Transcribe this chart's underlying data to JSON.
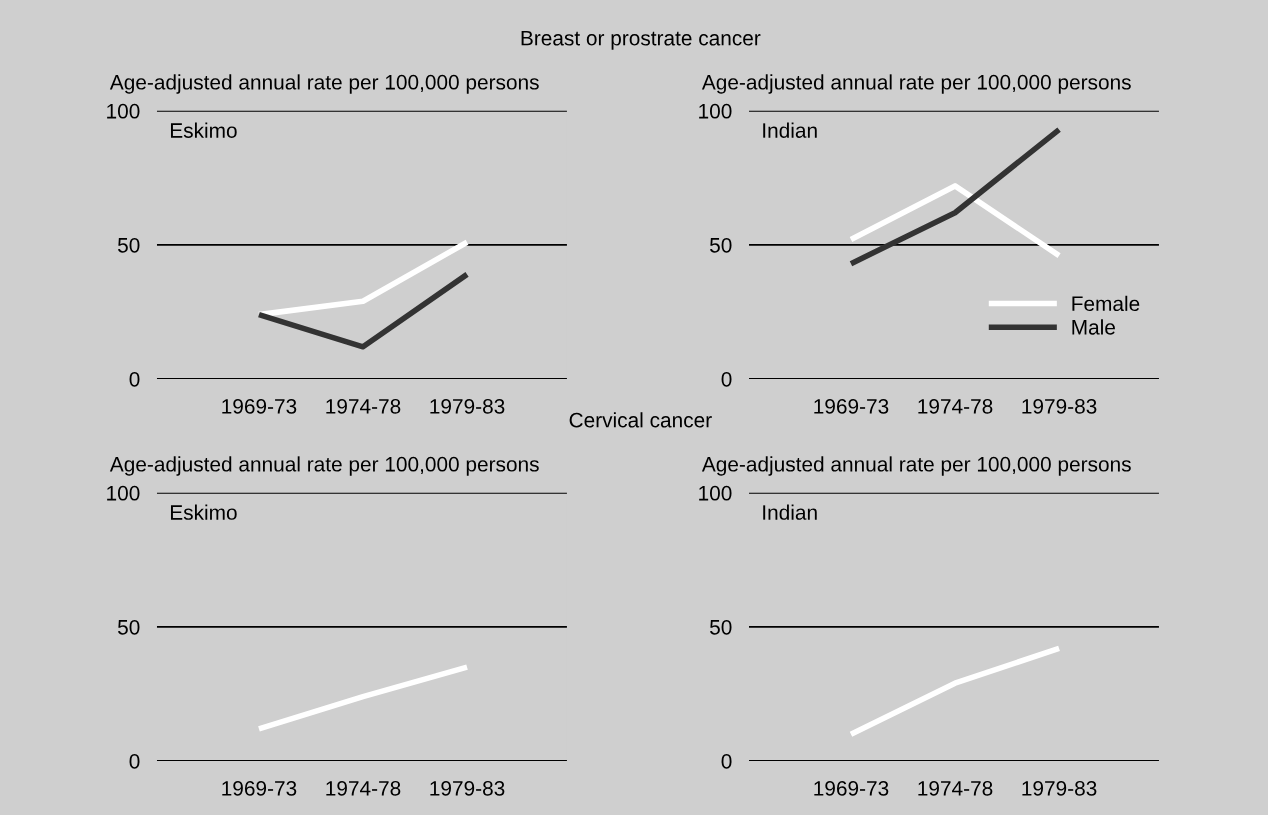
{
  "chart_data": [
    {
      "type": "line",
      "annotations": [
        "Breast or prostrate cancer"
      ],
      "ylabel": "Age-adjusted annual rate per 100,000 persons",
      "subtitle": "Eskimo",
      "categories": [
        "1969-73",
        "1974-78",
        "1979-83"
      ],
      "ylim": [
        0,
        100
      ],
      "yticks": [
        0,
        50,
        100
      ],
      "grid": "y",
      "legend": false,
      "series": [
        {
          "color": "#ffffff",
          "values": [
            24,
            29,
            51
          ]
        },
        {
          "color": "#333333",
          "values": [
            24,
            12,
            39
          ]
        }
      ]
    },
    {
      "type": "line",
      "ylabel": "Age-adjusted annual rate per 100,000 persons",
      "subtitle": "Indian",
      "categories": [
        "1969-73",
        "1974-78",
        "1979-83"
      ],
      "ylim": [
        0,
        100
      ],
      "yticks": [
        0,
        50,
        100
      ],
      "grid": "y",
      "legend": "bottom right",
      "series": [
        {
          "name": "Female",
          "color": "#ffffff",
          "values": [
            52,
            72,
            46
          ]
        },
        {
          "name": "Male",
          "color": "#333333",
          "values": [
            43,
            62,
            93
          ]
        }
      ]
    },
    {
      "type": "line",
      "annotations": [
        "Cervical cancer"
      ],
      "ylabel": "Age-adjusted annual rate per 100,000 persons",
      "subtitle": "Eskimo",
      "categories": [
        "1969-73",
        "1974-78",
        "1979-83"
      ],
      "ylim": [
        0,
        100
      ],
      "yticks": [
        0,
        50,
        100
      ],
      "grid": "y",
      "legend": false,
      "series": [
        {
          "color": "#ffffff",
          "values": [
            12,
            24,
            35
          ]
        }
      ]
    },
    {
      "type": "line",
      "ylabel": "Age-adjusted annual rate per 100,000 persons",
      "subtitle": "Indian",
      "categories": [
        "1969-73",
        "1974-78",
        "1979-83"
      ],
      "ylim": [
        0,
        100
      ],
      "yticks": [
        0,
        50,
        100
      ],
      "grid": "y",
      "legend": false,
      "series": [
        {
          "color": "#ffffff",
          "values": [
            10,
            29,
            42
          ]
        }
      ]
    }
  ]
}
